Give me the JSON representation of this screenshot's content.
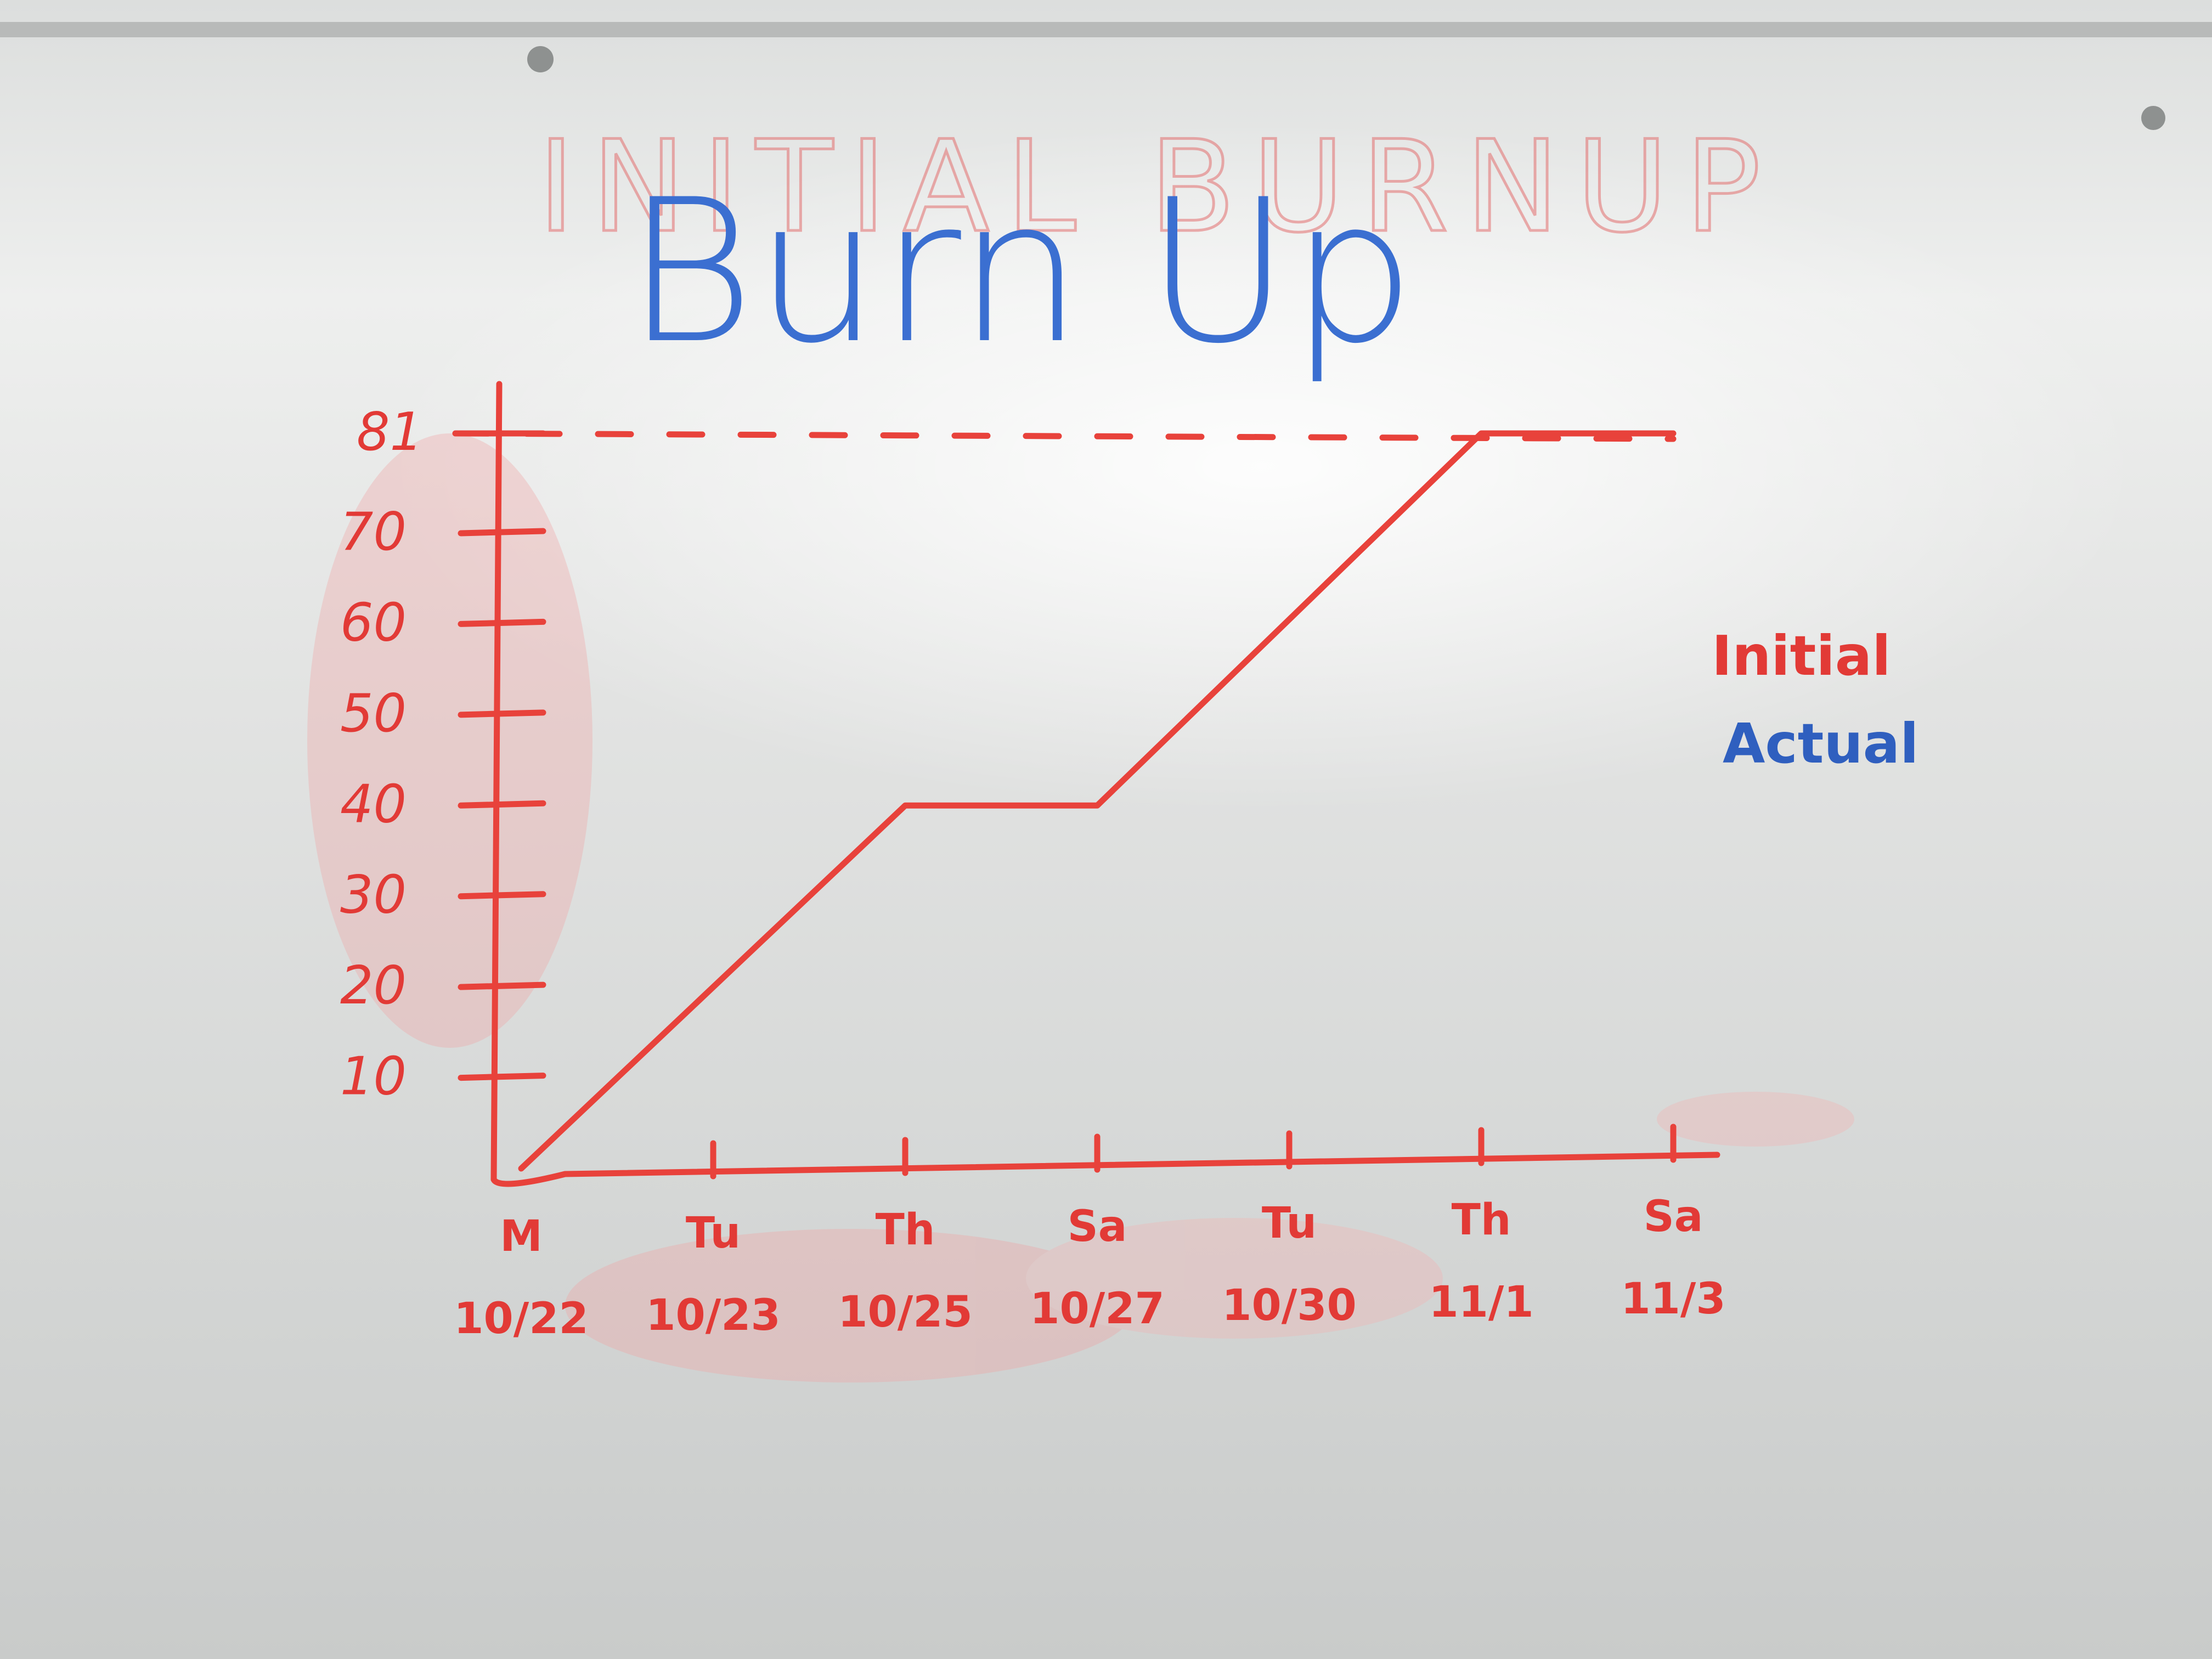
{
  "ghost_title": "INITIAL BURNUP",
  "legend": {
    "initial_label": "Initial",
    "actual_label": "Actual"
  },
  "colors": {
    "initial": "#e8423b",
    "actual": "#2f5fbf",
    "board": "#e6e7e6"
  },
  "chart_data": {
    "type": "line",
    "title": "Burn Up",
    "xlabel": "",
    "ylabel": "",
    "ylim": [
      0,
      81
    ],
    "y_ticks": [
      "10",
      "20",
      "30",
      "40",
      "50",
      "60",
      "70"
    ],
    "scope_line": {
      "label": "81",
      "value": 81,
      "style": "dashed"
    },
    "x_ticks": [
      {
        "day": "M",
        "date": "10/22"
      },
      {
        "day": "Tu",
        "date": "10/23"
      },
      {
        "day": "Th",
        "date": "10/25"
      },
      {
        "day": "Sa",
        "date": "10/27"
      },
      {
        "day": "Tu",
        "date": "10/30"
      },
      {
        "day": "Th",
        "date": "11/1"
      },
      {
        "day": "Sa",
        "date": "11/3"
      }
    ],
    "series": [
      {
        "name": "Initial",
        "x": [
          "10/22",
          "10/25",
          "10/27",
          "11/1",
          "11/3"
        ],
        "y": [
          0,
          40,
          40,
          81,
          81
        ]
      }
    ],
    "legend_position": "right",
    "grid": false
  }
}
